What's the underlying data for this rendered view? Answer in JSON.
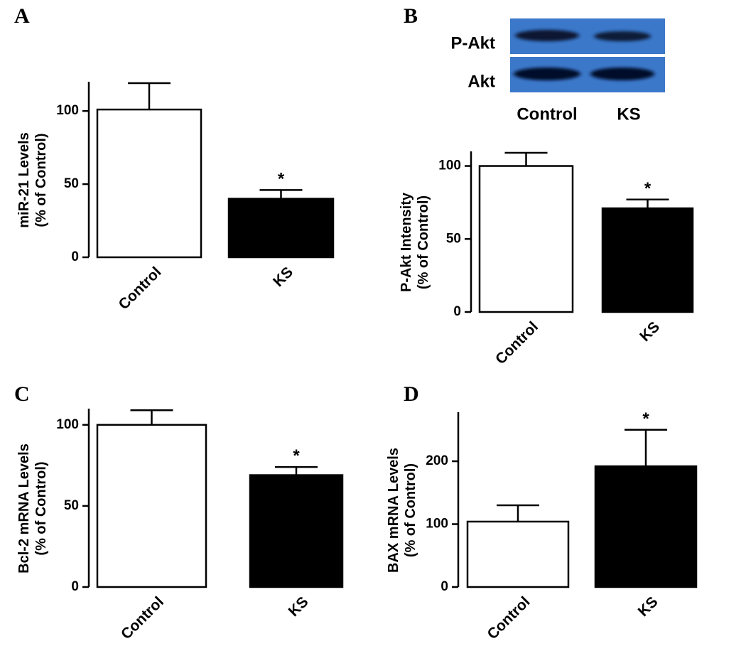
{
  "chart_data": [
    {
      "type": "bar",
      "panel": "A",
      "ylabel": [
        "miR-21 Levels",
        "(% of Control)"
      ],
      "categories": [
        "Control",
        "KS"
      ],
      "values": [
        101,
        40
      ],
      "errors": [
        18,
        6
      ],
      "colors": [
        "#ffffff",
        "#000000"
      ],
      "ylim": [
        0,
        120
      ],
      "yticks": [
        0,
        50,
        100
      ],
      "annotations": [
        {
          "text": "*",
          "category": "KS"
        }
      ]
    },
    {
      "type": "bar",
      "panel": "B",
      "ylabel": [
        "P-Akt Intensity",
        "(% of Control)"
      ],
      "blot": {
        "rows": [
          "P-Akt",
          "Akt"
        ],
        "lanes": [
          "Control",
          "KS"
        ]
      },
      "categories": [
        "Control",
        "KS"
      ],
      "values": [
        100,
        71
      ],
      "errors": [
        9,
        6
      ],
      "colors": [
        "#ffffff",
        "#000000"
      ],
      "ylim": [
        0,
        110
      ],
      "yticks": [
        0,
        50,
        100
      ],
      "annotations": [
        {
          "text": "*",
          "category": "KS"
        }
      ]
    },
    {
      "type": "bar",
      "panel": "C",
      "ylabel": [
        "Bcl-2 mRNA Levels",
        "(% of Control)"
      ],
      "categories": [
        "Control",
        "KS"
      ],
      "values": [
        100,
        69
      ],
      "errors": [
        9,
        5
      ],
      "colors": [
        "#ffffff",
        "#000000"
      ],
      "ylim": [
        0,
        110
      ],
      "yticks": [
        0,
        50,
        100
      ],
      "annotations": [
        {
          "text": "*",
          "category": "KS"
        }
      ]
    },
    {
      "type": "bar",
      "panel": "D",
      "ylabel": [
        "BAX mRNA Levels",
        "(% of Control)"
      ],
      "categories": [
        "Control",
        "KS"
      ],
      "values": [
        104,
        192
      ],
      "errors": [
        26,
        58
      ],
      "colors": [
        "#ffffff",
        "#000000"
      ],
      "ylim": [
        0,
        278
      ],
      "yticks": [
        0,
        100,
        200
      ],
      "annotations": [
        {
          "text": "*",
          "category": "KS"
        }
      ]
    }
  ]
}
